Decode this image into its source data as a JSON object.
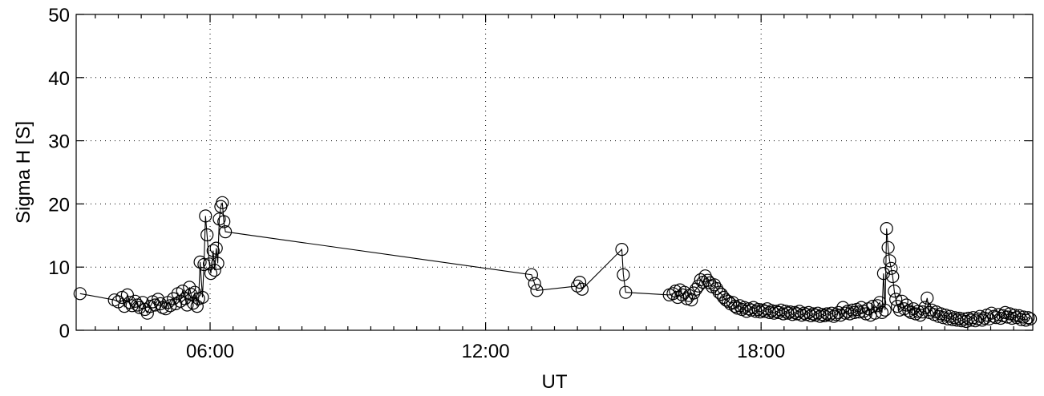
{
  "chart_data": {
    "type": "line",
    "title": "",
    "xlabel": "UT",
    "ylabel": "Sigma H [S]",
    "xlim": [
      "03:05",
      "23:55"
    ],
    "ylim": [
      0,
      50
    ],
    "grid": true,
    "x_ticks": [
      "06:00",
      "12:00",
      "18:00"
    ],
    "y_ticks": [
      0,
      10,
      20,
      30,
      40,
      50
    ],
    "marker": "open-circle",
    "series": [
      {
        "points": [
          [
            "03:10",
            5.8
          ],
          [
            "03:55",
            4.8
          ],
          [
            "04:00",
            4.5
          ],
          [
            "04:05",
            5.2
          ],
          [
            "04:08",
            3.8
          ],
          [
            "04:12",
            5.6
          ],
          [
            "04:15",
            4.4
          ],
          [
            "04:18",
            3.9
          ],
          [
            "04:22",
            4.6
          ],
          [
            "04:25",
            4.0
          ],
          [
            "04:28",
            3.6
          ],
          [
            "04:32",
            4.4
          ],
          [
            "04:35",
            3.3
          ],
          [
            "04:38",
            2.7
          ],
          [
            "04:42",
            3.8
          ],
          [
            "04:45",
            4.5
          ],
          [
            "04:48",
            4.0
          ],
          [
            "04:52",
            4.9
          ],
          [
            "04:55",
            4.2
          ],
          [
            "04:58",
            3.6
          ],
          [
            "05:02",
            3.4
          ],
          [
            "05:05",
            4.4
          ],
          [
            "05:08",
            3.9
          ],
          [
            "05:12",
            5.0
          ],
          [
            "05:15",
            4.2
          ],
          [
            "05:18",
            5.8
          ],
          [
            "05:21",
            4.6
          ],
          [
            "05:24",
            6.2
          ],
          [
            "05:27",
            5.0
          ],
          [
            "05:30",
            4.0
          ],
          [
            "05:33",
            6.8
          ],
          [
            "05:35",
            5.7
          ],
          [
            "05:38",
            4.3
          ],
          [
            "05:40",
            6.0
          ],
          [
            "05:43",
            3.8
          ],
          [
            "05:45",
            5.0
          ],
          [
            "05:47",
            10.8
          ],
          [
            "05:50",
            5.2
          ],
          [
            "05:52",
            10.4
          ],
          [
            "05:54",
            18.1
          ],
          [
            "05:56",
            15.1
          ],
          [
            "05:59",
            10.5
          ],
          [
            "06:01",
            9.0
          ],
          [
            "06:04",
            12.6
          ],
          [
            "06:06",
            9.5
          ],
          [
            "06:08",
            13.0
          ],
          [
            "06:10",
            10.6
          ],
          [
            "06:12",
            17.6
          ],
          [
            "06:14",
            19.6
          ],
          [
            "06:16",
            20.2
          ],
          [
            "06:18",
            17.2
          ],
          [
            "06:20",
            15.6
          ],
          [
            "13:00",
            8.8
          ],
          [
            "13:04",
            7.4
          ],
          [
            "13:07",
            6.3
          ],
          [
            "14:00",
            7.0
          ],
          [
            "14:03",
            7.6
          ],
          [
            "14:06",
            6.5
          ],
          [
            "14:58",
            12.8
          ],
          [
            "15:00",
            8.8
          ],
          [
            "15:03",
            6.0
          ],
          [
            "16:00",
            5.6
          ],
          [
            "16:05",
            5.8
          ],
          [
            "16:08",
            6.2
          ],
          [
            "16:11",
            5.2
          ],
          [
            "16:14",
            6.4
          ],
          [
            "16:17",
            5.6
          ],
          [
            "16:20",
            6.0
          ],
          [
            "16:23",
            5.0
          ],
          [
            "16:26",
            5.5
          ],
          [
            "16:29",
            4.8
          ],
          [
            "16:32",
            5.9
          ],
          [
            "16:35",
            6.5
          ],
          [
            "16:38",
            7.0
          ],
          [
            "16:41",
            8.0
          ],
          [
            "16:44",
            7.6
          ],
          [
            "16:47",
            8.6
          ],
          [
            "16:50",
            7.9
          ],
          [
            "16:53",
            7.5
          ],
          [
            "16:56",
            6.9
          ],
          [
            "16:59",
            7.2
          ],
          [
            "17:02",
            6.6
          ],
          [
            "17:05",
            6.0
          ],
          [
            "17:08",
            5.7
          ],
          [
            "17:11",
            5.2
          ],
          [
            "17:14",
            4.8
          ],
          [
            "17:17",
            4.6
          ],
          [
            "17:20",
            4.2
          ],
          [
            "17:23",
            4.4
          ],
          [
            "17:26",
            3.8
          ],
          [
            "17:29",
            3.5
          ],
          [
            "17:32",
            3.9
          ],
          [
            "17:35",
            3.3
          ],
          [
            "17:38",
            3.6
          ],
          [
            "17:41",
            3.0
          ],
          [
            "17:44",
            3.4
          ],
          [
            "17:47",
            3.2
          ],
          [
            "17:50",
            3.6
          ],
          [
            "17:53",
            3.0
          ],
          [
            "17:56",
            3.3
          ],
          [
            "17:59",
            2.9
          ],
          [
            "18:02",
            3.2
          ],
          [
            "18:05",
            3.0
          ],
          [
            "18:08",
            3.4
          ],
          [
            "18:11",
            2.8
          ],
          [
            "18:14",
            3.1
          ],
          [
            "18:17",
            2.7
          ],
          [
            "18:20",
            3.0
          ],
          [
            "18:23",
            2.8
          ],
          [
            "18:26",
            3.2
          ],
          [
            "18:29",
            2.6
          ],
          [
            "18:32",
            3.0
          ],
          [
            "18:35",
            2.7
          ],
          [
            "18:38",
            2.9
          ],
          [
            "18:41",
            2.5
          ],
          [
            "18:44",
            2.8
          ],
          [
            "18:47",
            2.6
          ],
          [
            "18:50",
            3.0
          ],
          [
            "18:53",
            2.4
          ],
          [
            "18:56",
            2.7
          ],
          [
            "18:59",
            2.5
          ],
          [
            "19:02",
            2.8
          ],
          [
            "19:05",
            2.3
          ],
          [
            "19:08",
            2.6
          ],
          [
            "19:11",
            2.4
          ],
          [
            "19:14",
            2.7
          ],
          [
            "19:17",
            2.2
          ],
          [
            "19:20",
            2.5
          ],
          [
            "19:23",
            2.3
          ],
          [
            "19:26",
            2.6
          ],
          [
            "19:29",
            2.4
          ],
          [
            "19:32",
            2.7
          ],
          [
            "19:35",
            2.2
          ],
          [
            "19:38",
            2.5
          ],
          [
            "19:41",
            2.8
          ],
          [
            "19:44",
            2.4
          ],
          [
            "19:47",
            3.6
          ],
          [
            "19:50",
            2.7
          ],
          [
            "19:53",
            3.0
          ],
          [
            "19:56",
            2.6
          ],
          [
            "19:59",
            3.2
          ],
          [
            "20:02",
            2.8
          ],
          [
            "20:05",
            3.3
          ],
          [
            "20:08",
            2.9
          ],
          [
            "20:11",
            3.6
          ],
          [
            "20:14",
            3.0
          ],
          [
            "20:17",
            2.6
          ],
          [
            "20:20",
            3.4
          ],
          [
            "20:23",
            2.4
          ],
          [
            "20:26",
            3.8
          ],
          [
            "20:29",
            2.7
          ],
          [
            "20:32",
            3.9
          ],
          [
            "20:35",
            4.4
          ],
          [
            "20:38",
            2.8
          ],
          [
            "20:40",
            9.0
          ],
          [
            "20:42",
            3.2
          ],
          [
            "20:44",
            16.1
          ],
          [
            "20:46",
            13.1
          ],
          [
            "20:48",
            11.0
          ],
          [
            "20:50",
            9.8
          ],
          [
            "20:52",
            8.5
          ],
          [
            "20:54",
            6.2
          ],
          [
            "20:56",
            4.9
          ],
          [
            "20:58",
            3.8
          ],
          [
            "21:01",
            3.2
          ],
          [
            "21:04",
            4.6
          ],
          [
            "21:07",
            3.4
          ],
          [
            "21:10",
            4.0
          ],
          [
            "21:13",
            3.1
          ],
          [
            "21:16",
            2.8
          ],
          [
            "21:19",
            3.4
          ],
          [
            "21:22",
            2.6
          ],
          [
            "21:25",
            3.0
          ],
          [
            "21:28",
            2.4
          ],
          [
            "21:31",
            2.9
          ],
          [
            "21:34",
            3.6
          ],
          [
            "21:37",
            5.1
          ],
          [
            "21:40",
            2.8
          ],
          [
            "21:43",
            3.2
          ],
          [
            "21:46",
            2.5
          ],
          [
            "21:49",
            2.9
          ],
          [
            "21:52",
            2.2
          ],
          [
            "21:55",
            2.6
          ],
          [
            "21:58",
            2.0
          ],
          [
            "22:01",
            2.4
          ],
          [
            "22:04",
            1.8
          ],
          [
            "22:07",
            2.2
          ],
          [
            "22:10",
            1.7
          ],
          [
            "22:13",
            2.0
          ],
          [
            "22:16",
            1.6
          ],
          [
            "22:19",
            1.9
          ],
          [
            "22:22",
            1.5
          ],
          [
            "22:25",
            1.8
          ],
          [
            "22:28",
            1.4
          ],
          [
            "22:31",
            1.9
          ],
          [
            "22:34",
            1.6
          ],
          [
            "22:37",
            2.0
          ],
          [
            "22:40",
            1.5
          ],
          [
            "22:43",
            1.8
          ],
          [
            "22:46",
            2.2
          ],
          [
            "22:49",
            1.6
          ],
          [
            "22:52",
            1.9
          ],
          [
            "22:55",
            2.4
          ],
          [
            "22:58",
            1.8
          ],
          [
            "23:01",
            2.7
          ],
          [
            "23:04",
            2.2
          ],
          [
            "23:07",
            2.0
          ],
          [
            "23:10",
            2.5
          ],
          [
            "23:13",
            1.9
          ],
          [
            "23:16",
            2.3
          ],
          [
            "23:19",
            2.8
          ],
          [
            "23:22",
            2.1
          ],
          [
            "23:25",
            2.6
          ],
          [
            "23:28",
            1.9
          ],
          [
            "23:31",
            2.4
          ],
          [
            "23:34",
            2.0
          ],
          [
            "23:37",
            2.3
          ],
          [
            "23:40",
            1.7
          ],
          [
            "23:43",
            2.1
          ],
          [
            "23:46",
            1.6
          ],
          [
            "23:49",
            2.0
          ],
          [
            "23:52",
            1.8
          ]
        ]
      }
    ]
  }
}
